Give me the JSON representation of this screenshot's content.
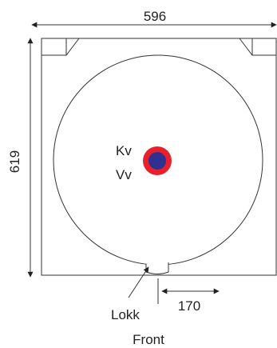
{
  "dimensions": {
    "width_label": "596",
    "height_label": "619",
    "offset_label": "170"
  },
  "labels": {
    "kv": "Kv",
    "vv": "Vv",
    "lokk": "Lokk",
    "front": "Front"
  },
  "colors": {
    "outline": "#333333",
    "outer_ring": "#e8202a",
    "inner_dot": "#2e3192"
  }
}
